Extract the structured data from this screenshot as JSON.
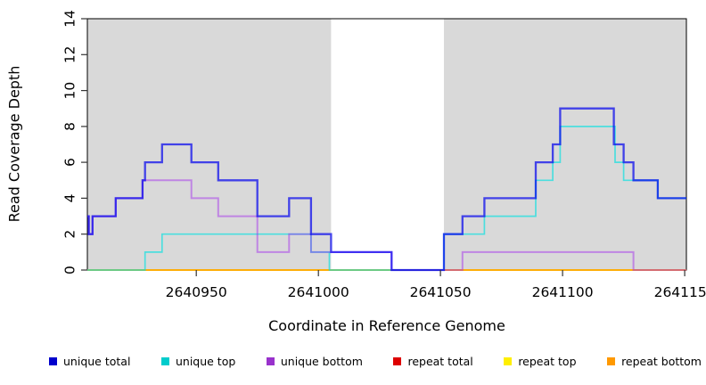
{
  "chart_data": {
    "type": "line",
    "subtype": "step",
    "title": "",
    "xlabel": "Coordinate in Reference Genome",
    "ylabel": "Read Coverage Depth",
    "xlim": [
      2640905.4,
      2641150.7
    ],
    "ylim": [
      0,
      14
    ],
    "grid": false,
    "x_ticks": [
      {
        "value": 2640950,
        "label": "2640950"
      },
      {
        "value": 2641000,
        "label": "2641000"
      },
      {
        "value": 2641050,
        "label": "2641050"
      },
      {
        "value": 2641100,
        "label": "2641100"
      },
      {
        "value": 2641150,
        "label": "2641150"
      }
    ],
    "y_ticks": [
      {
        "value": 0,
        "label": "0"
      },
      {
        "value": 2,
        "label": "2"
      },
      {
        "value": 4,
        "label": "4"
      },
      {
        "value": 6,
        "label": "6"
      },
      {
        "value": 8,
        "label": "8"
      },
      {
        "value": 10,
        "label": "10"
      },
      {
        "value": 12,
        "label": "12"
      },
      {
        "value": 14,
        "label": "14"
      }
    ],
    "shaded_regions": [
      {
        "start": 2640905.4,
        "end": 2641005.2,
        "color": "#d9d9d9"
      },
      {
        "start": 2641051.4,
        "end": 2641150.7,
        "color": "#d9d9d9"
      }
    ],
    "series": [
      {
        "name": "repeat total",
        "color": "#dd0000",
        "opacity": 1.0,
        "width": 1.4,
        "steps": [
          [
            2640905.4,
            0
          ]
        ]
      },
      {
        "name": "repeat top",
        "color": "#ffff00",
        "opacity": 1.0,
        "width": 1.4,
        "steps": [
          [
            2640905.4,
            0
          ]
        ]
      },
      {
        "name": "repeat bottom",
        "color": "#ffa500",
        "opacity": 0.9,
        "width": 1.8,
        "steps": [
          [
            2640905.4,
            0
          ]
        ]
      },
      {
        "name": "unique top",
        "color": "#00e0e0",
        "opacity": 0.65,
        "width": 1.7,
        "steps": [
          [
            2640905.4,
            0
          ],
          [
            2640929,
            1
          ],
          [
            2640936,
            2
          ],
          [
            2640997,
            1
          ],
          [
            2641004.5,
            0
          ],
          [
            2641051.4,
            2
          ],
          [
            2641068,
            3
          ],
          [
            2641089,
            5
          ],
          [
            2641096,
            6
          ],
          [
            2641099,
            8
          ],
          [
            2641121.5,
            6
          ],
          [
            2641125,
            5
          ],
          [
            2641139,
            4
          ]
        ]
      },
      {
        "name": "unique bottom",
        "color": "#a020f0",
        "opacity": 0.45,
        "width": 2.0,
        "steps": [
          [
            2640905.4,
            3
          ],
          [
            2640906,
            2
          ],
          [
            2640907.5,
            3
          ],
          [
            2640917,
            4
          ],
          [
            2640928,
            5
          ],
          [
            2640948,
            4
          ],
          [
            2640959,
            3
          ],
          [
            2640975,
            1
          ],
          [
            2640988,
            2
          ],
          [
            2640997,
            1
          ],
          [
            2641030,
            0
          ],
          [
            2641059,
            1
          ],
          [
            2641129,
            0
          ]
        ]
      },
      {
        "name": "unique total",
        "color": "#0000ee",
        "opacity": 0.7,
        "width": 2.3,
        "steps": [
          [
            2640905.4,
            3
          ],
          [
            2640906,
            2
          ],
          [
            2640907.5,
            3
          ],
          [
            2640917,
            4
          ],
          [
            2640928,
            5
          ],
          [
            2640929,
            6
          ],
          [
            2640936,
            7
          ],
          [
            2640948,
            6
          ],
          [
            2640959,
            5
          ],
          [
            2640975,
            3
          ],
          [
            2640988,
            4
          ],
          [
            2640997,
            2
          ],
          [
            2641005.2,
            1
          ],
          [
            2641030,
            0
          ],
          [
            2641051.4,
            2
          ],
          [
            2641059,
            3
          ],
          [
            2641068,
            4
          ],
          [
            2641089,
            6
          ],
          [
            2641096,
            7
          ],
          [
            2641099,
            9
          ],
          [
            2641121,
            7
          ],
          [
            2641125,
            6
          ],
          [
            2641129,
            5
          ],
          [
            2641139,
            4
          ]
        ]
      }
    ],
    "legend": [
      {
        "label": "unique total",
        "color": "#0000cc"
      },
      {
        "label": "unique top",
        "color": "#00cccc"
      },
      {
        "label": "unique bottom",
        "color": "#9932cc"
      },
      {
        "label": "repeat total",
        "color": "#dd0000"
      },
      {
        "label": "repeat top",
        "color": "#ffef00"
      },
      {
        "label": "repeat bottom",
        "color": "#ff9900"
      }
    ]
  }
}
